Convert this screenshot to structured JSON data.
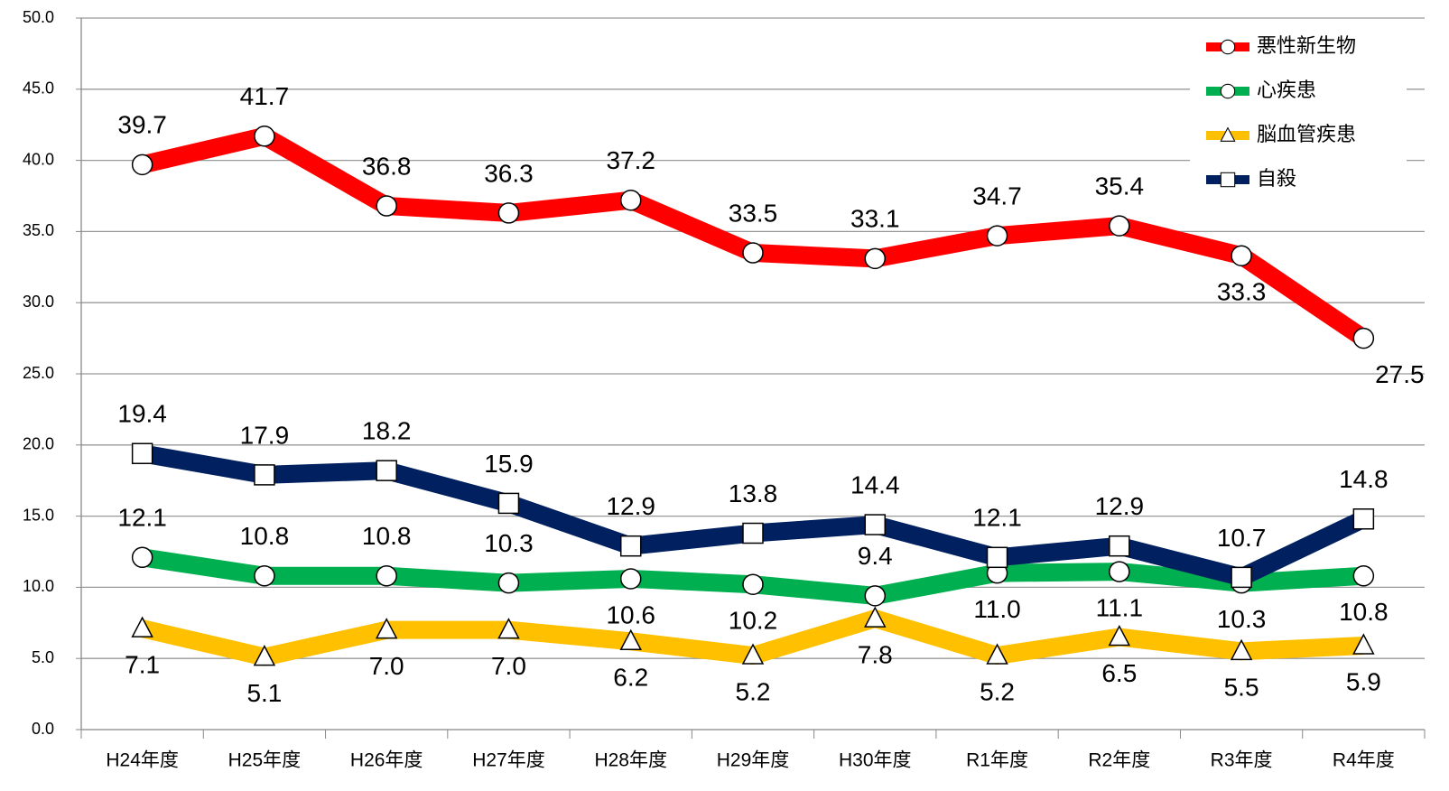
{
  "chart_data": {
    "type": "line",
    "categories": [
      "H24年度",
      "H25年度",
      "H26年度",
      "H27年度",
      "H28年度",
      "H29年度",
      "H30年度",
      "R1年度",
      "R2年度",
      "R3年度",
      "R4年度"
    ],
    "series": [
      {
        "name": "悪性新生物",
        "color": "#ff0000",
        "marker": "circle",
        "values": [
          39.7,
          41.7,
          36.8,
          36.3,
          37.2,
          33.5,
          33.1,
          34.7,
          35.4,
          33.3,
          27.5
        ],
        "value_labels": [
          "39.7",
          "41.7",
          "36.8",
          "36.3",
          "37.2",
          "33.5",
          "33.1",
          "34.7",
          "35.4",
          "33.3",
          "27.5"
        ]
      },
      {
        "name": "心疾患",
        "color": "#00b050",
        "marker": "circle",
        "values": [
          12.1,
          10.8,
          10.8,
          10.3,
          10.6,
          10.2,
          9.4,
          11.0,
          11.1,
          10.3,
          10.8
        ],
        "value_labels": [
          "12.1",
          "10.8",
          "10.8",
          "10.3",
          "10.6",
          "10.2",
          "9.4",
          "11.0",
          "11.1",
          "10.3",
          "10.8"
        ]
      },
      {
        "name": "脳血管疾患",
        "color": "#ffc000",
        "marker": "triangle",
        "values": [
          7.1,
          5.1,
          7.0,
          7.0,
          6.2,
          5.2,
          7.8,
          5.2,
          6.5,
          5.5,
          5.9
        ],
        "value_labels": [
          "7.1",
          "5.1",
          "7.0",
          "7.0",
          "6.2",
          "5.2",
          "7.8",
          "5.2",
          "6.5",
          "5.5",
          "5.9"
        ]
      },
      {
        "name": "自殺",
        "color": "#002060",
        "marker": "square",
        "values": [
          19.4,
          17.9,
          18.2,
          15.9,
          12.9,
          13.8,
          14.4,
          12.1,
          12.9,
          10.7,
          14.8
        ],
        "value_labels": [
          "19.4",
          "17.9",
          "18.2",
          "15.9",
          "12.9",
          "13.8",
          "14.4",
          "12.1",
          "12.9",
          "10.7",
          "14.8"
        ]
      }
    ],
    "ylim": [
      0,
      50
    ],
    "yticks": [
      {
        "value": 0,
        "label": "0.0"
      },
      {
        "value": 5,
        "label": "5.0"
      },
      {
        "value": 10,
        "label": "10.0"
      },
      {
        "value": 15,
        "label": "15.0"
      },
      {
        "value": 20,
        "label": "20.0"
      },
      {
        "value": 25,
        "label": "25.0"
      },
      {
        "value": 30,
        "label": "30.0"
      },
      {
        "value": 35,
        "label": "35.0"
      },
      {
        "value": 40,
        "label": "40.0"
      },
      {
        "value": 45,
        "label": "45.0"
      },
      {
        "value": 50,
        "label": "50.0"
      }
    ],
    "grid": true,
    "legend": "top-right"
  }
}
